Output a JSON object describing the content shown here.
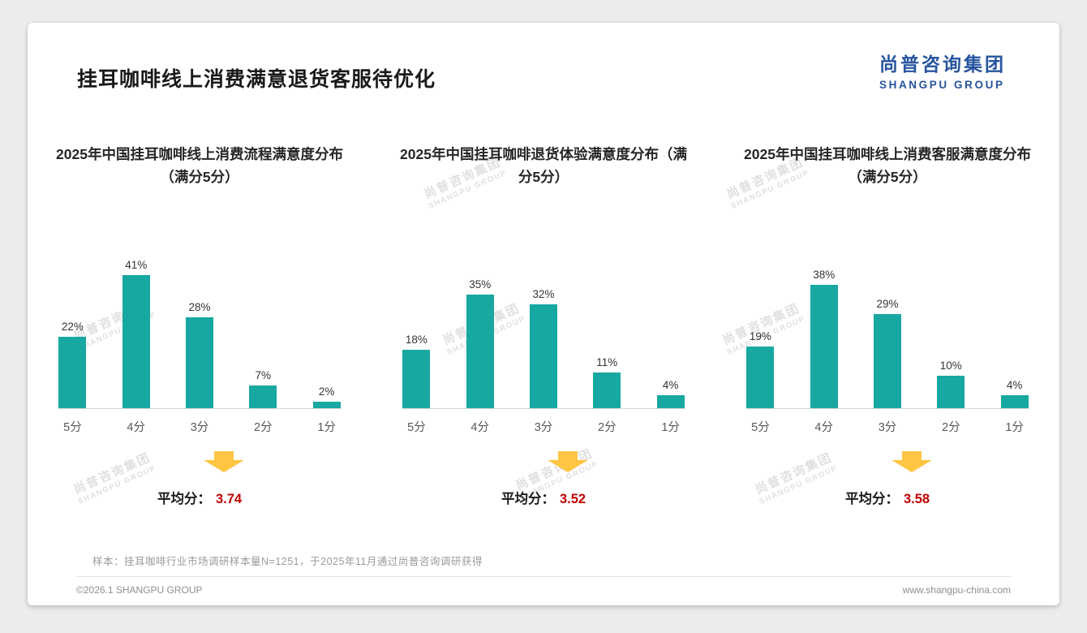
{
  "slide": {
    "title": "挂耳咖啡线上消费满意退货客服待优化",
    "logo": {
      "cn": "尚普咨询集团",
      "en": "SHANGPU GROUP"
    },
    "note": "样本：挂耳咖啡行业市场调研样本量N=1251，于2025年11月通过尚普咨询调研获得",
    "footer_left": "©2026.1 SHANGPU GROUP",
    "footer_right": "www.shangpu-china.com"
  },
  "watermark": {
    "cn": "尚普咨询集团",
    "en": "SHANGPU GROUP"
  },
  "colors": {
    "bar": "#17A8A1",
    "arrow": "#FFC543",
    "average_value": "#C00000",
    "logo_blue": "#27549E"
  },
  "chart_data": [
    {
      "type": "bar",
      "title": "2025年中国挂耳咖啡线上消费流程满意度分布（满分5分）",
      "categories": [
        "5分",
        "4分",
        "3分",
        "2分",
        "1分"
      ],
      "values": [
        22,
        41,
        28,
        7,
        2
      ],
      "labels": [
        "22%",
        "41%",
        "28%",
        "7%",
        "2%"
      ],
      "average_label": "平均分：",
      "average": "3.74",
      "xlabel": "",
      "ylabel": "",
      "ylim": [
        0,
        45
      ],
      "grid": false,
      "legend": false
    },
    {
      "type": "bar",
      "title": "2025年中国挂耳咖啡退货体验满意度分布（满分5分）",
      "categories": [
        "5分",
        "4分",
        "3分",
        "2分",
        "1分"
      ],
      "values": [
        18,
        35,
        32,
        11,
        4
      ],
      "labels": [
        "18%",
        "35%",
        "32%",
        "11%",
        "4%"
      ],
      "average_label": "平均分：",
      "average": "3.52",
      "xlabel": "",
      "ylabel": "",
      "ylim": [
        0,
        45
      ],
      "grid": false,
      "legend": false
    },
    {
      "type": "bar",
      "title": "2025年中国挂耳咖啡线上消费客服满意度分布（满分5分）",
      "categories": [
        "5分",
        "4分",
        "3分",
        "2分",
        "1分"
      ],
      "values": [
        19,
        38,
        29,
        10,
        4
      ],
      "labels": [
        "19%",
        "38%",
        "29%",
        "10%",
        "4%"
      ],
      "average_label": "平均分：",
      "average": "3.58",
      "xlabel": "",
      "ylabel": "",
      "ylim": [
        0,
        45
      ],
      "grid": false,
      "legend": false
    }
  ]
}
